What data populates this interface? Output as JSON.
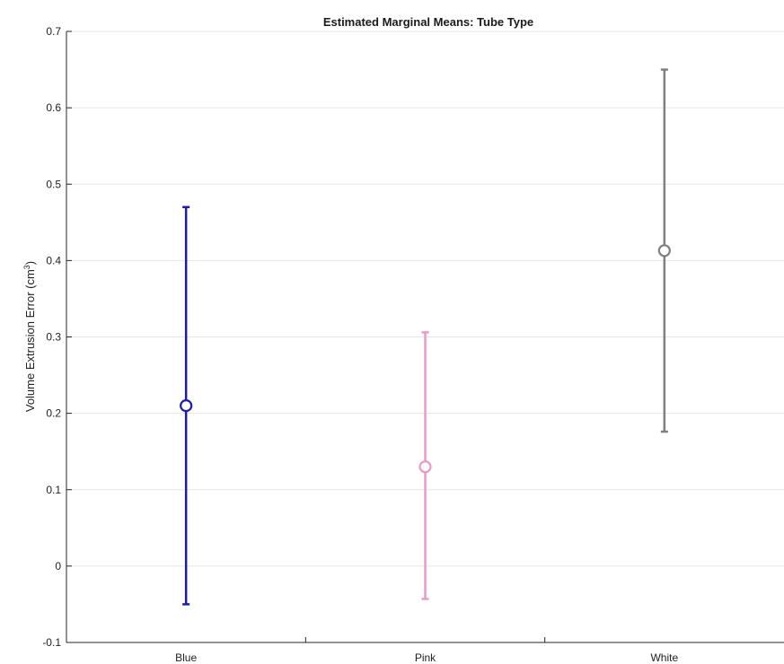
{
  "chart_data": {
    "type": "scatter",
    "title": "Estimated Marginal Means: Tube Type",
    "ylabel": "Volume Extrusion Error (cm",
    "ylabel_superscript": "3",
    "ylabel_suffix": ")",
    "xlabel": "",
    "categories": [
      "Blue",
      "Pink",
      "White"
    ],
    "ylim": [
      -0.1,
      0.7
    ],
    "yticks": [
      -0.1,
      0,
      0.1,
      0.2,
      0.3,
      0.4,
      0.5,
      0.6,
      0.7
    ],
    "ytick_labels": [
      "-0.1",
      "0",
      "0.1",
      "0.2",
      "0.3",
      "0.4",
      "0.5",
      "0.6",
      "0.7"
    ],
    "grid": "horizontal",
    "points": [
      {
        "category": "Blue",
        "mean": 0.21,
        "lower": -0.05,
        "upper": 0.47,
        "color": "#1c1ca8"
      },
      {
        "category": "Pink",
        "mean": 0.13,
        "lower": -0.043,
        "upper": 0.306,
        "color": "#e89ac8"
      },
      {
        "category": "White",
        "mean": 0.413,
        "lower": 0.176,
        "upper": 0.65,
        "color": "#808080"
      }
    ]
  }
}
